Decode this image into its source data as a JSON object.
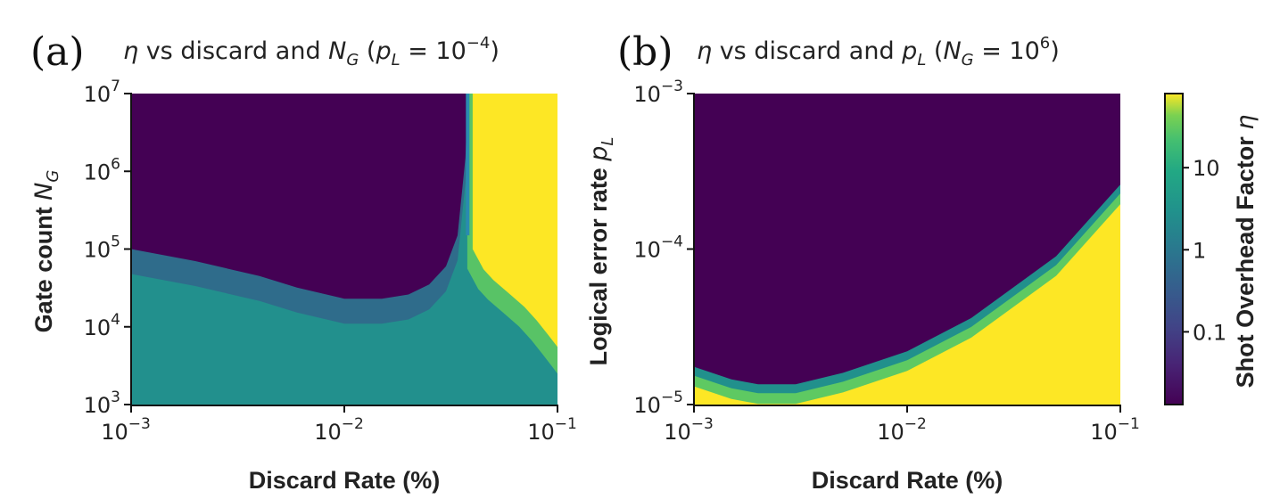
{
  "colors": {
    "low": "#440154",
    "mid": "#21908c",
    "high": "#fde725",
    "axis": "#111111"
  },
  "chart_data": [
    {
      "type": "heatmap",
      "panel": "(a)",
      "title": "η vs discard and N_G (p_L = 10^-4)",
      "title_parts": {
        "eta": "η",
        "vs": " vs discard and ",
        "var": "N",
        "var_sub": "G",
        "open": " (",
        "cond": "p",
        "cond_sub": "L",
        "eq": " = 10",
        "exp": "−4",
        "close": ")"
      },
      "xlabel": "Discard Rate (%)",
      "ylabel": "Gate count N_G",
      "ylabel_parts": {
        "text": "Gate count ",
        "var": "N",
        "sub": "G"
      },
      "xscale": "log",
      "yscale": "log",
      "xlim": [
        0.001,
        0.1
      ],
      "ylim": [
        1000,
        10000000
      ],
      "x_ticks": [
        {
          "base": "10",
          "exp": "−3",
          "value": 0.001
        },
        {
          "base": "10",
          "exp": "−2",
          "value": 0.01
        },
        {
          "base": "10",
          "exp": "−1",
          "value": 0.1
        }
      ],
      "y_ticks": [
        {
          "base": "10",
          "exp": "3",
          "value": 1000
        },
        {
          "base": "10",
          "exp": "4",
          "value": 10000
        },
        {
          "base": "10",
          "exp": "5",
          "value": 100000
        },
        {
          "base": "10",
          "exp": "6",
          "value": 1000000
        },
        {
          "base": "10",
          "exp": "7",
          "value": 10000000
        }
      ],
      "regions": [
        {
          "name": "low η (dark purple)",
          "boundary": "η drops sharply above ~1e5 gates at 1e-3 discard, dipping to ~2e4 gates near 1e-2 discard, rising to 1e7 at ~0.038 discard"
        },
        {
          "name": "mid η (teal)",
          "range": "lower-left region below the boundary"
        },
        {
          "name": "high η (yellow)",
          "range": "discard rate above ~0.04, extending down with increasing discard"
        }
      ],
      "boundary_x": [
        0.001,
        0.002,
        0.004,
        0.006,
        0.01,
        0.015,
        0.02,
        0.025,
        0.03,
        0.034,
        0.037,
        0.038
      ],
      "boundary_y": [
        100000,
        70000,
        45000,
        32000,
        23000,
        23000,
        26000,
        35000,
        60000,
        150000,
        1500000,
        10000000
      ],
      "yellow_edge_x": [
        0.04,
        0.045,
        0.05,
        0.06,
        0.07,
        0.08,
        0.09,
        0.1
      ],
      "yellow_edge_y": [
        100000,
        55000,
        40000,
        26000,
        18000,
        12000,
        8000,
        5500
      ]
    },
    {
      "type": "heatmap",
      "panel": "(b)",
      "title": "η vs discard and p_L (N_G = 10^6)",
      "title_parts": {
        "eta": "η",
        "vs": " vs discard and ",
        "var": "p",
        "var_sub": "L",
        "open": " (",
        "cond": "N",
        "cond_sub": "G",
        "eq": " = 10",
        "exp": "6",
        "close": ")"
      },
      "xlabel": "Discard Rate (%)",
      "ylabel": "Logical error rate p_L",
      "ylabel_parts": {
        "text": "Logical error rate ",
        "var": "p",
        "sub": "L"
      },
      "xscale": "log",
      "yscale": "log",
      "xlim": [
        0.001,
        0.1
      ],
      "ylim": [
        1e-05,
        0.001
      ],
      "x_ticks": [
        {
          "base": "10",
          "exp": "−3",
          "value": 0.001
        },
        {
          "base": "10",
          "exp": "−2",
          "value": 0.01
        },
        {
          "base": "10",
          "exp": "−1",
          "value": 0.1
        }
      ],
      "y_ticks": [
        {
          "base": "10",
          "exp": "−5",
          "value": 1e-05
        },
        {
          "base": "10",
          "exp": "−4",
          "value": 0.0001
        },
        {
          "base": "10",
          "exp": "−3",
          "value": 0.001
        }
      ],
      "boundary_x": [
        0.001,
        0.0015,
        0.002,
        0.003,
        0.005,
        0.01,
        0.02,
        0.05,
        0.1
      ],
      "boundary_y": [
        1.75e-05,
        1.45e-05,
        1.35e-05,
        1.35e-05,
        1.6e-05,
        2.2e-05,
        3.6e-05,
        9e-05,
        0.00026
      ]
    }
  ],
  "colorbar": {
    "label": "Shot Overhead Factor η",
    "label_text": "Shot Overhead Factor ",
    "label_sym": "η",
    "ticks": [
      "10",
      "1",
      "0.1"
    ],
    "tick_values": [
      10,
      1,
      0.1
    ],
    "range": [
      0.013,
      80
    ]
  }
}
